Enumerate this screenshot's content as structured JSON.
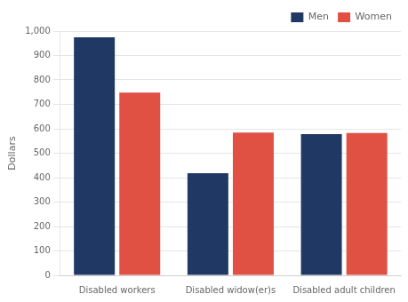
{
  "chart_data": {
    "type": "bar",
    "categories": [
      "Disabled workers",
      "Disabled widow(er)s",
      "Disabled adult children"
    ],
    "series": [
      {
        "name": "Men",
        "color": "#1f3864",
        "values": [
          975,
          418,
          578
        ]
      },
      {
        "name": "Women",
        "color": "#e05043",
        "values": [
          748,
          585,
          583
        ]
      }
    ],
    "ylabel": "Dollars",
    "ylim": [
      0,
      1000
    ],
    "yticks": [
      0,
      100,
      200,
      300,
      400,
      500,
      600,
      700,
      800,
      900,
      {
        "value": 1000,
        "label": "1,000"
      }
    ],
    "grid": true,
    "legend": "upper right"
  }
}
